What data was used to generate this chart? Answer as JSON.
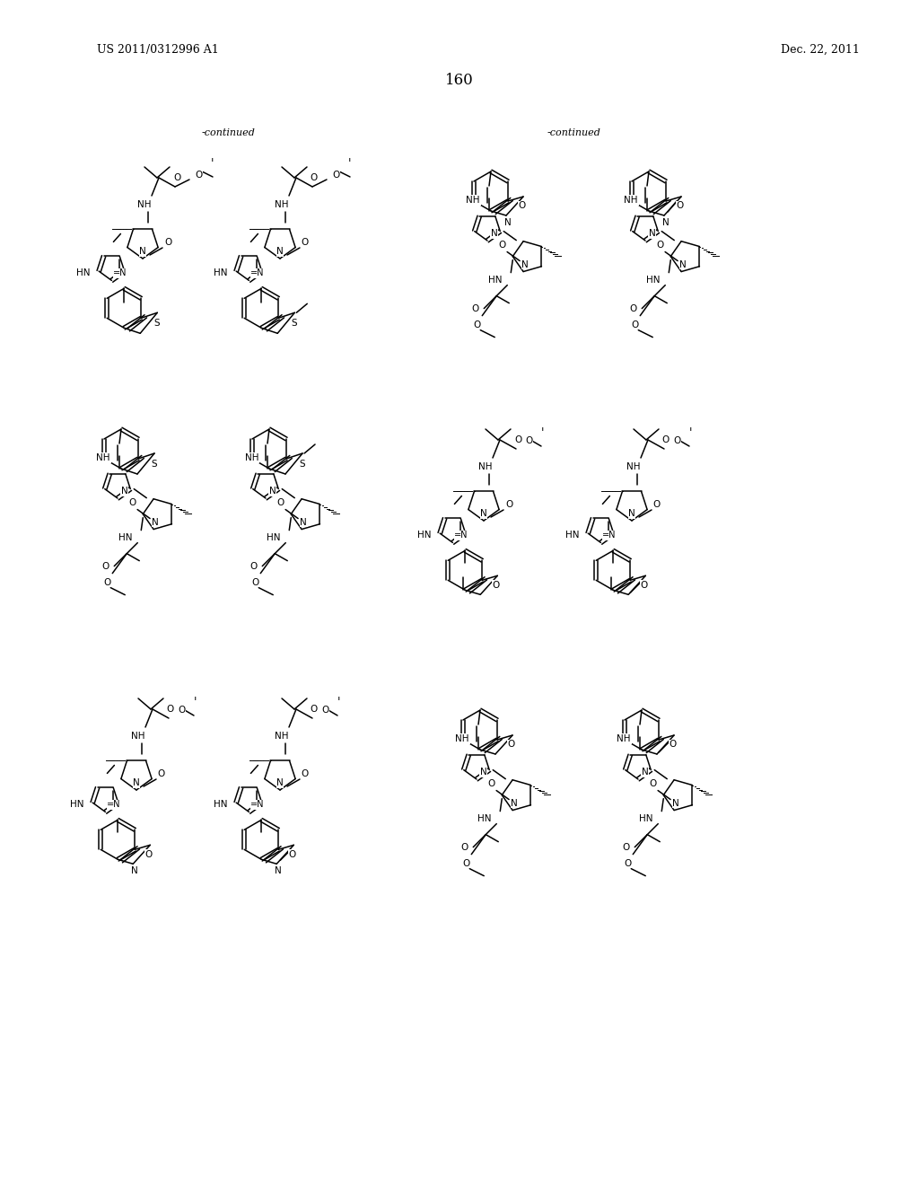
{
  "patent_number": "US 2011/0312996 A1",
  "date": "Dec. 22, 2011",
  "page_number": "160",
  "continued_left": "-continued",
  "continued_right": "-continued",
  "bg_color": "#ffffff",
  "figsize": [
    10.24,
    13.2
  ],
  "dpi": 100
}
